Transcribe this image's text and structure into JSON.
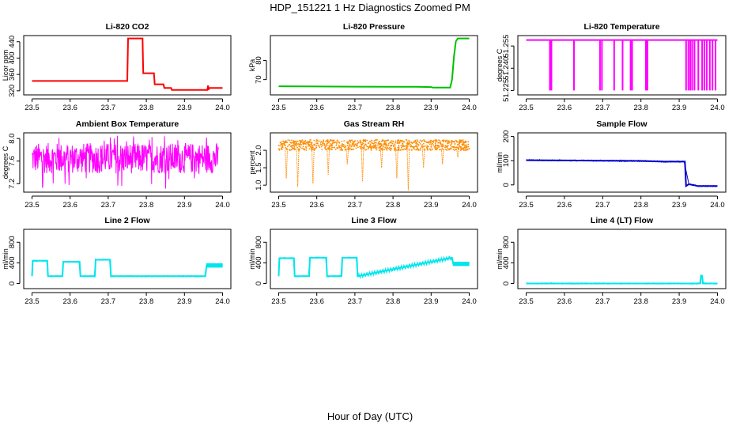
{
  "figure": {
    "title": "HDP_151221  1 Hz Diagnostics Zoomed PM",
    "xlabel": "Hour of Day (UTC)"
  },
  "chart_data": [
    {
      "type": "line",
      "title": "Li-820 CO2",
      "ylabel": "Licor ppm",
      "color": "#ff0000",
      "xlim": [
        23.5,
        24.0
      ],
      "xticks": [
        "23.5",
        "23.6",
        "23.7",
        "23.8",
        "23.9",
        "24.0"
      ],
      "ylim": [
        310,
        455
      ],
      "yticks": [
        320,
        360,
        400,
        440
      ],
      "series": [
        {
          "name": "CO2",
          "x": [
            23.5,
            23.75,
            23.752,
            23.79,
            23.792,
            23.82,
            23.822,
            23.845,
            23.847,
            23.865,
            23.867,
            23.96,
            23.962,
            23.963,
            23.965,
            24.0
          ],
          "y": [
            344,
            344,
            448,
            448,
            363,
            363,
            336,
            336,
            327,
            327,
            322,
            322,
            333,
            322,
            327,
            327
          ]
        }
      ]
    },
    {
      "type": "line",
      "title": "Li-820 Pressure",
      "ylabel": "kPa",
      "color": "#00c000",
      "xlim": [
        23.5,
        24.0
      ],
      "xticks": [
        "23.5",
        "23.6",
        "23.7",
        "23.8",
        "23.9",
        "24.0"
      ],
      "ylim": [
        62,
        93
      ],
      "yticks": [
        70,
        80
      ],
      "series": [
        {
          "name": "Pressure",
          "x": [
            23.5,
            23.7,
            23.86,
            23.9,
            23.905,
            23.95,
            23.955,
            23.96,
            23.965,
            23.97,
            24.0
          ],
          "y": [
            66.5,
            66.3,
            66.2,
            66.1,
            65.8,
            65.8,
            70,
            82,
            90,
            91.5,
            91.5
          ]
        }
      ]
    },
    {
      "type": "line",
      "title": "Li-820 Temperature",
      "ylabel": "degrees C",
      "color": "#ff00ff",
      "xlim": [
        23.5,
        24.0
      ],
      "xticks": [
        "23.5",
        "23.6",
        "23.7",
        "23.8",
        "23.9",
        "24.0"
      ],
      "ylim": [
        51.222,
        51.262
      ],
      "yticks": [
        "51.225",
        "51.240",
        "51.255"
      ],
      "ytick_values": [
        51.225,
        51.24,
        51.255
      ],
      "baseline": 51.259,
      "low": 51.225,
      "dropouts": [
        23.562,
        23.566,
        23.625,
        23.693,
        23.698,
        23.73,
        23.752,
        23.773,
        23.777,
        23.813,
        23.817,
        23.918,
        23.924,
        23.929,
        23.934,
        23.94,
        23.95,
        23.96,
        23.966,
        23.972,
        23.98,
        23.987,
        23.995
      ]
    },
    {
      "type": "line",
      "title": "Ambient Box Temperature",
      "ylabel": "degrees C",
      "color": "#ff00ff",
      "xlim": [
        23.5,
        24.0
      ],
      "xticks": [
        "23.5",
        "23.6",
        "23.7",
        "23.8",
        "23.9",
        "24.0"
      ],
      "ylim": [
        7.05,
        8.1
      ],
      "yticks": [
        "7.2",
        "7.6",
        "8.0"
      ],
      "ytick_values": [
        7.2,
        7.6,
        8.0
      ],
      "series": [
        {
          "name": "Box T",
          "x_range": [
            23.5,
            23.99
          ],
          "center": 7.65,
          "band": [
            7.45,
            7.9
          ],
          "outliers_low": 7.1,
          "outliers_high": 8.05
        }
      ]
    },
    {
      "type": "scatter",
      "title": "Gas Stream RH",
      "ylabel": "percent",
      "color": "#ff8c00",
      "xlim": [
        23.5,
        24.0
      ],
      "xticks": [
        "23.5",
        "23.6",
        "23.7",
        "23.8",
        "23.9",
        "24.0"
      ],
      "ylim": [
        0.8,
        2.5
      ],
      "yticks": [
        "1.0",
        "1.5",
        "2.0"
      ],
      "ytick_values": [
        1.0,
        1.5,
        2.0
      ],
      "series": [
        {
          "name": "RH",
          "x_range": [
            23.5,
            24.0
          ],
          "band": [
            2.0,
            2.3
          ],
          "spikes": [
            [
              23.52,
              1.2
            ],
            [
              23.55,
              0.95
            ],
            [
              23.59,
              1.05
            ],
            [
              23.63,
              1.3
            ],
            [
              23.68,
              1.6
            ],
            [
              23.72,
              1.1
            ],
            [
              23.77,
              1.5
            ],
            [
              23.81,
              1.2
            ],
            [
              23.84,
              0.85
            ],
            [
              23.88,
              1.5
            ],
            [
              23.93,
              1.6
            ],
            [
              23.97,
              1.8
            ]
          ]
        }
      ]
    },
    {
      "type": "line",
      "title": "Sample Flow",
      "ylabel": "ml/min",
      "color": "#0000cd",
      "xlim": [
        23.5,
        24.0
      ],
      "xticks": [
        "23.5",
        "23.6",
        "23.7",
        "23.8",
        "23.9",
        "24.0"
      ],
      "ylim": [
        -30,
        215
      ],
      "yticks": [
        0,
        100,
        200
      ],
      "series": [
        {
          "name": "Sample",
          "x": [
            23.5,
            23.6,
            23.7,
            23.8,
            23.86,
            23.915,
            23.918,
            23.925,
            23.95,
            24.0
          ],
          "y": [
            102,
            101,
            100,
            99,
            96,
            96,
            -5,
            3,
            -5,
            -5
          ]
        }
      ]
    },
    {
      "type": "line",
      "title": "Line 2 Flow",
      "ylabel": "ml/min",
      "color": "#00e5ee",
      "xlim": [
        23.5,
        24.0
      ],
      "xticks": [
        "23.5",
        "23.6",
        "23.7",
        "23.8",
        "23.9",
        "24.0"
      ],
      "ylim": [
        -100,
        1050
      ],
      "yticks": [
        0,
        400,
        800
      ],
      "series": [
        {
          "name": "Line 2",
          "x": [
            23.5,
            23.502,
            23.54,
            23.542,
            23.58,
            23.582,
            23.625,
            23.627,
            23.665,
            23.667,
            23.705,
            23.707,
            23.955,
            23.958,
            24.0
          ],
          "y": [
            140,
            440,
            440,
            140,
            140,
            420,
            420,
            140,
            140,
            460,
            460,
            140,
            140,
            350,
            350
          ]
        }
      ]
    },
    {
      "type": "line",
      "title": "Line 3 Flow",
      "ylabel": "ml/min",
      "color": "#00e5ee",
      "xlim": [
        23.5,
        24.0
      ],
      "xticks": [
        "23.5",
        "23.6",
        "23.7",
        "23.8",
        "23.9",
        "24.0"
      ],
      "ylim": [
        -100,
        1050
      ],
      "yticks": [
        0,
        400,
        800
      ],
      "series": [
        {
          "name": "Line 3",
          "x": [
            23.5,
            23.502,
            23.54,
            23.542,
            23.58,
            23.582,
            23.625,
            23.627,
            23.665,
            23.667,
            23.705,
            23.707,
            23.955,
            23.958,
            24.0
          ],
          "y": [
            140,
            490,
            490,
            140,
            140,
            500,
            500,
            140,
            140,
            500,
            500,
            140,
            500,
            380,
            380
          ]
        }
      ]
    },
    {
      "type": "line",
      "title": "Line 4 (LT) Flow",
      "ylabel": "ml/min",
      "color": "#00e5ee",
      "xlim": [
        23.5,
        24.0
      ],
      "xticks": [
        "23.5",
        "23.6",
        "23.7",
        "23.8",
        "23.9",
        "24.0"
      ],
      "ylim": [
        -100,
        1050
      ],
      "yticks": [
        0,
        400,
        800
      ],
      "series": [
        {
          "name": "Line 4",
          "x": [
            23.5,
            23.955,
            23.957,
            23.96,
            23.962,
            24.0
          ],
          "y": [
            0,
            0,
            150,
            150,
            0,
            0
          ]
        }
      ]
    }
  ]
}
